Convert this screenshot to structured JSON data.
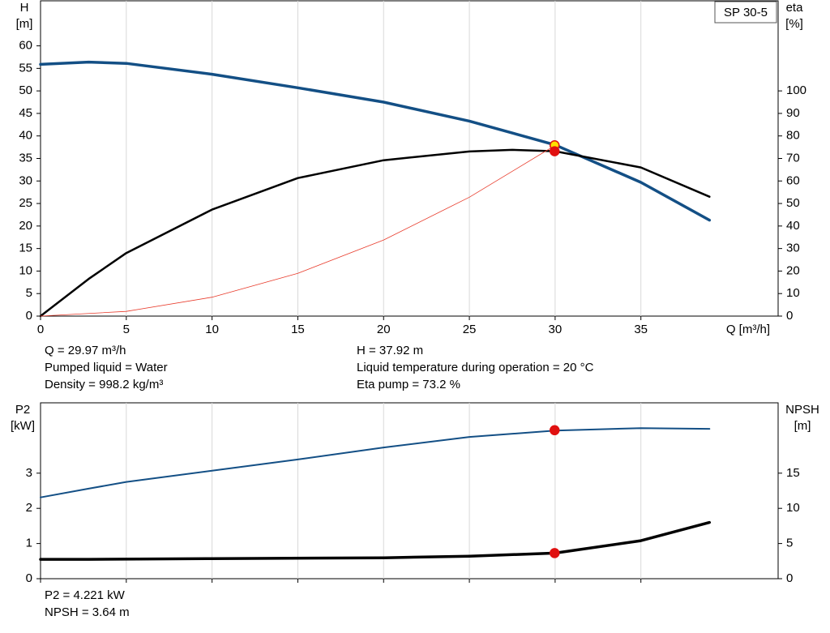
{
  "chart_data": [
    {
      "type": "line",
      "title": "SP 30-5",
      "xlabel": "Q [m³/h]",
      "ylabel": [
        "H",
        "[m]"
      ],
      "y2label": [
        "eta",
        "[%]"
      ],
      "xlim": [
        0,
        43
      ],
      "xticks": [
        0,
        5,
        10,
        15,
        20,
        25,
        30,
        35
      ],
      "ylim": [
        0,
        70
      ],
      "yticks": [
        0,
        5,
        10,
        15,
        20,
        25,
        30,
        35,
        40,
        45,
        50,
        55,
        60
      ],
      "y2lim": [
        0,
        140
      ],
      "y2ticks": [
        0,
        10,
        20,
        30,
        40,
        50,
        60,
        70,
        80,
        90,
        100
      ],
      "grid": true,
      "series": [
        {
          "color": "#134f85",
          "width": 3.5,
          "x": [
            0,
            2.8,
            5,
            10,
            15,
            20,
            25,
            30,
            35,
            39
          ],
          "values": [
            55.9,
            56.4,
            56.1,
            53.7,
            50.7,
            47.5,
            43.3,
            38.0,
            29.7,
            21.3
          ]
        },
        {
          "color": "#000000",
          "width": 2.5,
          "axis": "y2",
          "x": [
            0,
            2.8,
            5,
            10,
            15,
            20,
            25,
            27.5,
            30,
            35,
            39
          ],
          "values": [
            0,
            16.5,
            28,
            47.3,
            61.3,
            69.2,
            73.1,
            73.8,
            73.2,
            66,
            53
          ]
        },
        {
          "color": "#e83a2a",
          "width": 0.8,
          "x": [
            0,
            5,
            10,
            15,
            20,
            25,
            30
          ],
          "values": [
            0,
            1.05,
            4.2,
            9.5,
            16.9,
            26.4,
            37.9
          ]
        }
      ],
      "points": [
        {
          "x": 29.97,
          "y": 37.92,
          "color": "#ffe000",
          "stroke": "#e01010"
        },
        {
          "x": 29.97,
          "y": 73.2,
          "axis": "y2",
          "color": "#e01010",
          "stroke": "#e01010"
        }
      ],
      "notes": [
        [
          "Q = 29.97 m³/h",
          "Pumped liquid = Water",
          "Density = 998.2 kg/m³"
        ],
        [
          "H = 37.92 m",
          "Liquid temperature during operation = 20 °C",
          "Eta pump = 73.2 %"
        ]
      ]
    },
    {
      "type": "line",
      "ylabel": [
        "P2",
        "[kW]"
      ],
      "y2label": [
        "NPSH",
        "[m]"
      ],
      "xlim": [
        0,
        43
      ],
      "xticks": [
        0,
        5,
        10,
        15,
        20,
        25,
        30,
        35
      ],
      "xtick_labels": false,
      "ylim": [
        0,
        5
      ],
      "yticks": [
        0,
        1,
        2,
        3
      ],
      "y2lim": [
        0,
        25
      ],
      "y2ticks": [
        0,
        5,
        10,
        15
      ],
      "grid": true,
      "series": [
        {
          "color": "#134f85",
          "width": 2,
          "x": [
            0,
            2.8,
            5,
            10,
            15,
            20,
            25,
            30,
            35,
            39
          ],
          "values": [
            2.31,
            2.56,
            2.75,
            3.07,
            3.39,
            3.73,
            4.03,
            4.21,
            4.28,
            4.26
          ]
        },
        {
          "color": "#000000",
          "width": 3.5,
          "axis": "y2",
          "x": [
            0,
            2.8,
            10,
            20,
            25,
            30,
            35,
            39
          ],
          "values": [
            2.75,
            2.75,
            2.86,
            2.97,
            3.2,
            3.64,
            5.4,
            8.0
          ]
        }
      ],
      "points": [
        {
          "x": 29.97,
          "y": 4.221,
          "color": "#e01010",
          "stroke": "#e01010"
        },
        {
          "x": 29.97,
          "y": 3.64,
          "axis": "y2",
          "color": "#e01010",
          "stroke": "#e01010"
        }
      ],
      "notes": [
        [
          "P2 = 4.221 kW",
          "NPSH = 3.64 m"
        ]
      ]
    }
  ]
}
